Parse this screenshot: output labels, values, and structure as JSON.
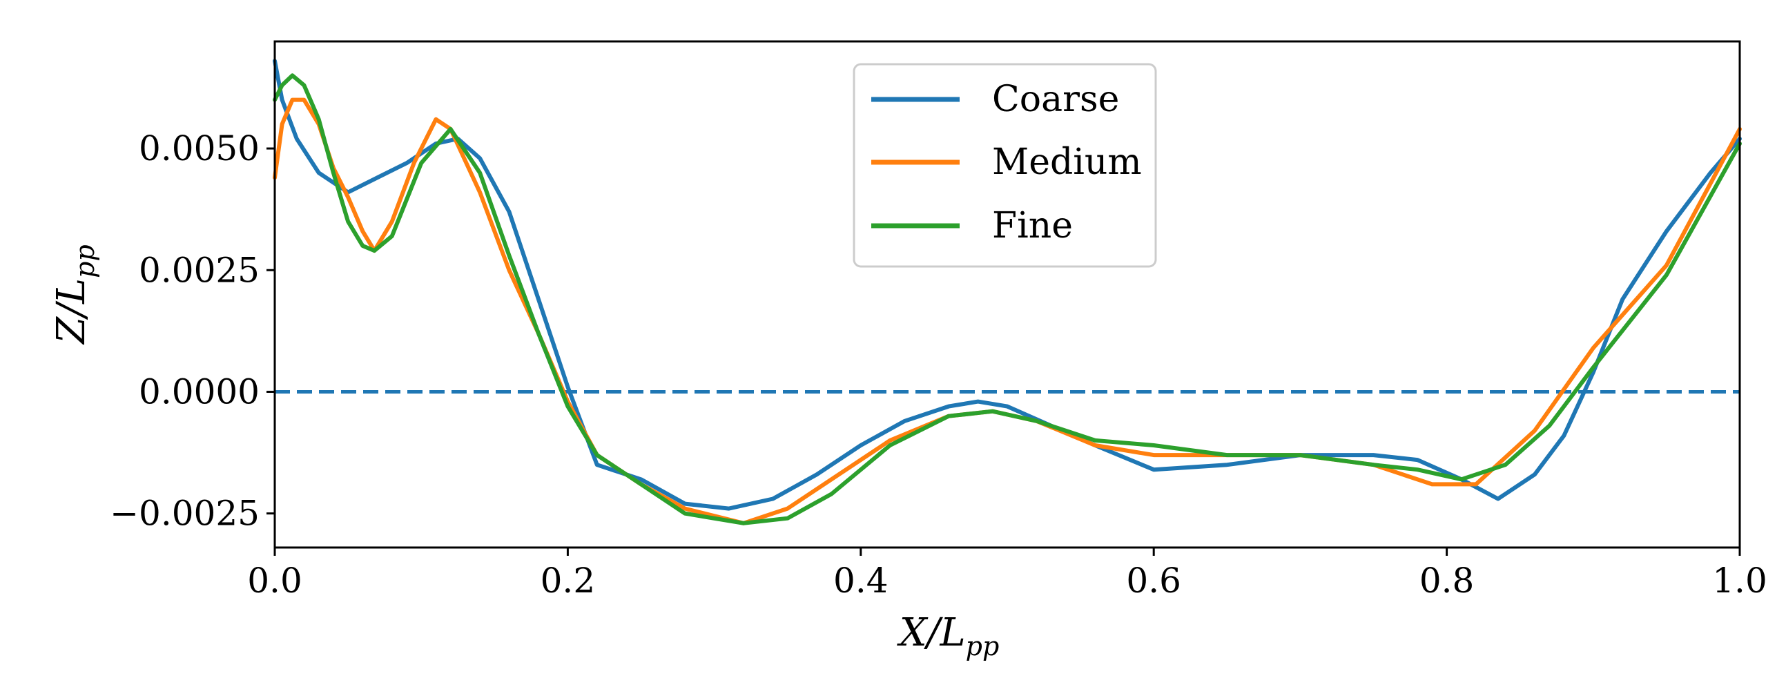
{
  "chart_data": {
    "type": "line",
    "title": "",
    "xlabel": "X/L_pp",
    "ylabel": "Z/L_pp",
    "xlim": [
      0.0,
      1.0
    ],
    "ylim": [
      -0.0032,
      0.0072
    ],
    "grid": false,
    "legend_position": "top-center",
    "x_ticks": [
      0.0,
      0.2,
      0.4,
      0.6,
      0.8,
      1.0
    ],
    "x_tick_labels": [
      "0.0",
      "0.2",
      "0.4",
      "0.6",
      "0.8",
      "1.0"
    ],
    "y_ticks": [
      -0.0025,
      0.0,
      0.0025,
      0.005
    ],
    "y_tick_labels": [
      "−0.0025",
      "0.0000",
      "0.0025",
      "0.0050"
    ],
    "reference_line": {
      "y": 0.0,
      "style": "dashed",
      "color": "#1f77b4"
    },
    "series": [
      {
        "name": "Coarse",
        "color": "#1f77b4",
        "x": [
          0.0,
          0.005,
          0.015,
          0.03,
          0.05,
          0.07,
          0.09,
          0.11,
          0.125,
          0.14,
          0.16,
          0.18,
          0.2,
          0.22,
          0.25,
          0.28,
          0.31,
          0.34,
          0.37,
          0.4,
          0.43,
          0.46,
          0.48,
          0.5,
          0.53,
          0.56,
          0.6,
          0.65,
          0.7,
          0.75,
          0.78,
          0.81,
          0.835,
          0.86,
          0.88,
          0.9,
          0.92,
          0.95,
          0.98,
          1.0
        ],
        "y": [
          0.0068,
          0.006,
          0.0052,
          0.0045,
          0.0041,
          0.0044,
          0.0047,
          0.0051,
          0.0052,
          0.0048,
          0.0037,
          0.0019,
          0.0001,
          -0.0015,
          -0.0018,
          -0.0023,
          -0.0024,
          -0.0022,
          -0.0017,
          -0.0011,
          -0.0006,
          -0.0003,
          -0.0002,
          -0.0003,
          -0.0007,
          -0.0011,
          -0.0016,
          -0.0015,
          -0.0013,
          -0.0013,
          -0.0014,
          -0.0018,
          -0.0022,
          -0.0017,
          -0.0009,
          0.0004,
          0.0019,
          0.0033,
          0.0045,
          0.0052
        ]
      },
      {
        "name": "Medium",
        "color": "#ff7f0e",
        "x": [
          0.0,
          0.005,
          0.012,
          0.02,
          0.03,
          0.04,
          0.05,
          0.06,
          0.068,
          0.08,
          0.095,
          0.11,
          0.12,
          0.14,
          0.16,
          0.18,
          0.2,
          0.22,
          0.25,
          0.28,
          0.32,
          0.35,
          0.38,
          0.42,
          0.46,
          0.49,
          0.52,
          0.56,
          0.6,
          0.65,
          0.7,
          0.75,
          0.79,
          0.82,
          0.86,
          0.9,
          0.95,
          1.0
        ],
        "y": [
          0.0044,
          0.0055,
          0.006,
          0.006,
          0.0055,
          0.0046,
          0.004,
          0.0033,
          0.0029,
          0.0035,
          0.0047,
          0.0056,
          0.0054,
          0.0041,
          0.0025,
          0.0012,
          -0.0002,
          -0.0013,
          -0.0019,
          -0.0024,
          -0.0027,
          -0.0024,
          -0.0018,
          -0.001,
          -0.0005,
          -0.0004,
          -0.0006,
          -0.0011,
          -0.0013,
          -0.0013,
          -0.0013,
          -0.0015,
          -0.0019,
          -0.0019,
          -0.0008,
          0.0009,
          0.0026,
          0.0054
        ]
      },
      {
        "name": "Fine",
        "color": "#2ca02c",
        "x": [
          0.0,
          0.005,
          0.012,
          0.02,
          0.03,
          0.04,
          0.05,
          0.06,
          0.068,
          0.08,
          0.1,
          0.12,
          0.14,
          0.16,
          0.18,
          0.2,
          0.22,
          0.25,
          0.28,
          0.32,
          0.35,
          0.38,
          0.42,
          0.46,
          0.49,
          0.52,
          0.56,
          0.6,
          0.65,
          0.7,
          0.75,
          0.78,
          0.81,
          0.84,
          0.87,
          0.9,
          0.95,
          1.0
        ],
        "y": [
          0.006,
          0.0063,
          0.0065,
          0.0063,
          0.0056,
          0.0045,
          0.0035,
          0.003,
          0.0029,
          0.0032,
          0.0047,
          0.0054,
          0.0045,
          0.0028,
          0.0012,
          -0.0003,
          -0.0013,
          -0.0019,
          -0.0025,
          -0.0027,
          -0.0026,
          -0.0021,
          -0.0011,
          -0.0005,
          -0.0004,
          -0.0006,
          -0.001,
          -0.0011,
          -0.0013,
          -0.0013,
          -0.0015,
          -0.0016,
          -0.0018,
          -0.0015,
          -0.0007,
          0.0005,
          0.0024,
          0.0051
        ]
      }
    ]
  }
}
